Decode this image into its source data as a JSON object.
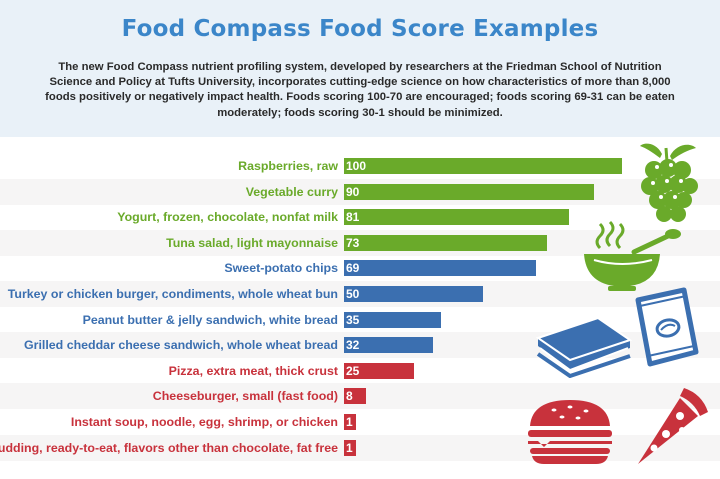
{
  "title": "Food Compass Food Score Examples",
  "intro": "The new Food Compass nutrient profiling system, developed by researchers at the Friedman School of Nutrition Science and Policy at Tufts University, incorporates cutting-edge science on how characteristics of more than 8,000 foods positively or negatively impact health. Foods scoring 100-70 are encouraged; foods scoring 69-31 can be eaten moderately;  foods scoring 30-1 should be minimized.",
  "colors": {
    "encouraged": "#6aaa2a",
    "moderate": "#3b6fb0",
    "minimized": "#c8323c"
  },
  "chart_data": {
    "type": "bar",
    "orientation": "horizontal",
    "title": "Food Compass Food Score Examples",
    "xlim": [
      0,
      100
    ],
    "categories": [
      "Raspberries, raw",
      "Vegetable curry",
      "Yogurt, frozen, chocolate, nonfat milk",
      "Tuna salad, light mayonnaise",
      "Sweet-potato chips",
      "Turkey or chicken burger, condiments, whole wheat bun",
      "Peanut butter & jelly sandwich, white bread",
      "Grilled cheddar cheese sandwich, whole wheat bread",
      "Pizza, extra meat, thick crust",
      "Cheeseburger, small (fast food)",
      "Instant soup, noodle, egg, shrimp, or chicken",
      "Pudding, ready-to-eat, flavors other than chocolate, fat free"
    ],
    "values": [
      100,
      90,
      81,
      73,
      69,
      50,
      35,
      32,
      25,
      8,
      1,
      1
    ],
    "groups": [
      "encouraged",
      "encouraged",
      "encouraged",
      "encouraged",
      "moderate",
      "moderate",
      "moderate",
      "moderate",
      "minimized",
      "minimized",
      "minimized",
      "minimized"
    ]
  },
  "icons": [
    "grapes-icon",
    "soup-bowl-icon",
    "chips-bag-icon",
    "sandwich-icon",
    "burger-icon",
    "pizza-slice-icon"
  ]
}
